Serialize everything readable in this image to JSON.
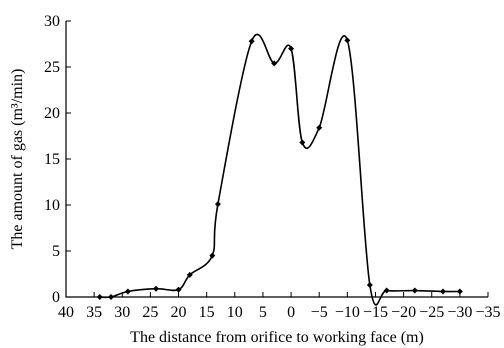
{
  "chart_data": {
    "type": "line",
    "xlabel": "The distance from orifice to working face (m)",
    "ylabel": "The amount of gas (m³/min)",
    "xlim": [
      40,
      -35
    ],
    "ylim": [
      0,
      30
    ],
    "x_ticks": [
      40,
      35,
      30,
      25,
      20,
      15,
      10,
      5,
      0,
      -5,
      -10,
      -15,
      -20,
      -25,
      -30,
      -35
    ],
    "x_tick_labels": [
      "40",
      "35",
      "30",
      "25",
      "20",
      "15",
      "10",
      "5",
      "0",
      "−5",
      "−10",
      "−15",
      "−20",
      "−25",
      "−30",
      "−35"
    ],
    "y_ticks": [
      0,
      5,
      10,
      15,
      20,
      25,
      30
    ],
    "y_tick_labels": [
      "0",
      "5",
      "10",
      "15",
      "20",
      "25",
      "30"
    ],
    "grid": false,
    "marker": "diamond",
    "series": [
      {
        "points": [
          [
            34,
            0.0
          ],
          [
            32,
            0.0
          ],
          [
            29,
            0.6
          ],
          [
            24,
            0.9
          ],
          [
            20,
            0.8
          ],
          [
            18,
            2.4
          ],
          [
            14,
            4.5
          ],
          [
            13,
            10.1
          ],
          [
            7,
            27.8
          ],
          [
            3,
            25.4
          ],
          [
            0,
            27.0
          ],
          [
            -2,
            16.8
          ],
          [
            -5,
            18.4
          ],
          [
            -10,
            27.9
          ],
          [
            -14,
            1.3
          ],
          [
            -17,
            0.7
          ],
          [
            -22,
            0.7
          ],
          [
            -27,
            0.6
          ],
          [
            -30,
            0.6
          ]
        ]
      }
    ]
  }
}
